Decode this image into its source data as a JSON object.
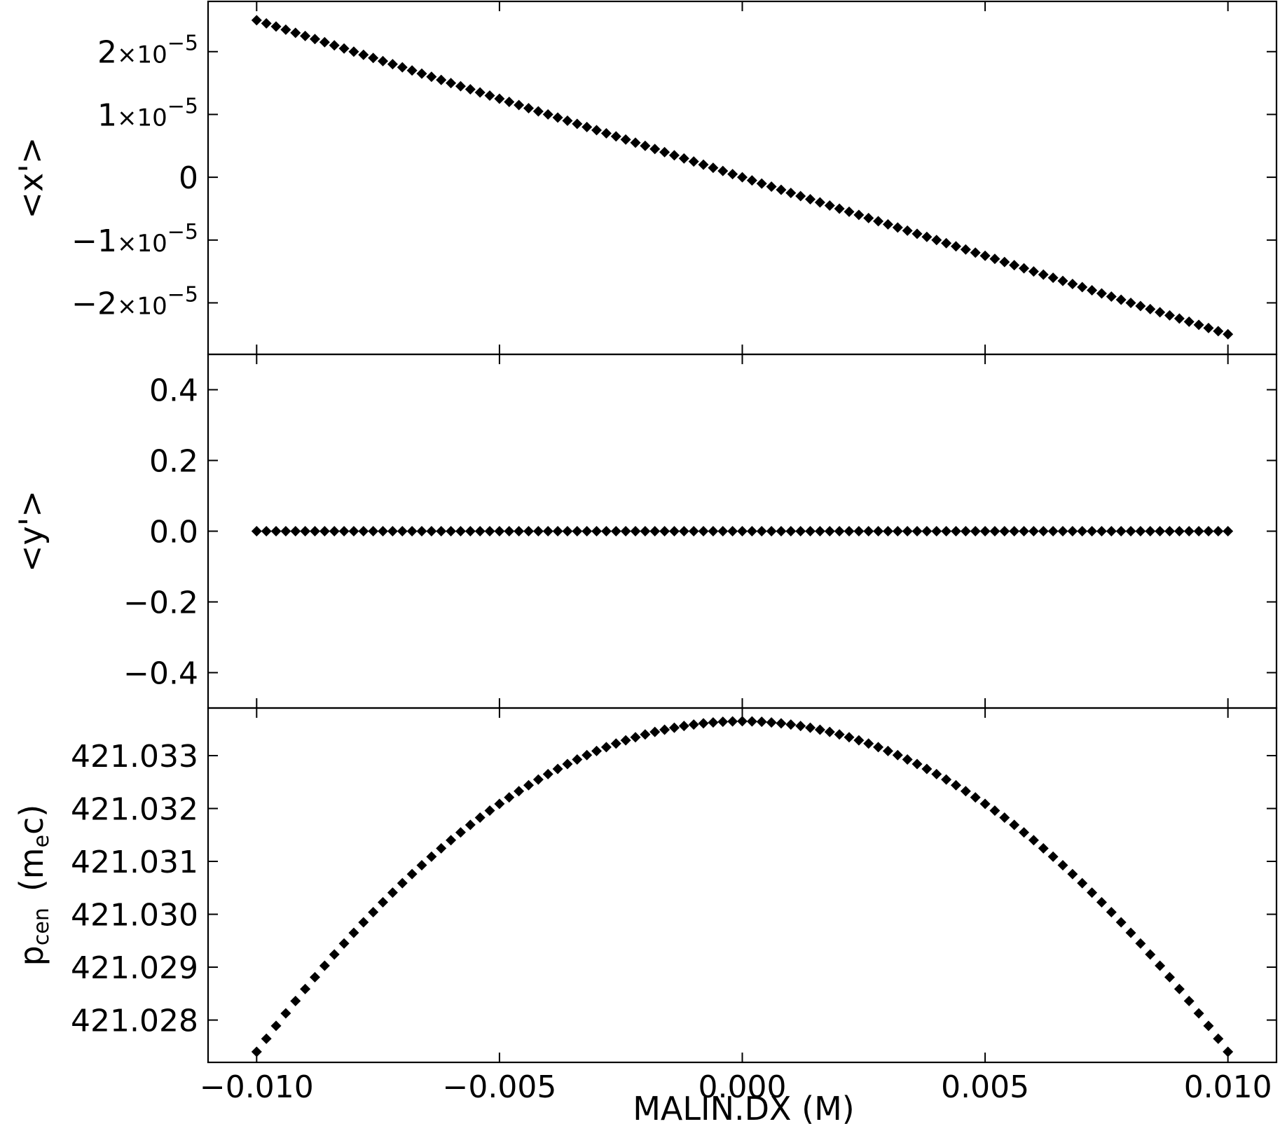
{
  "chart_data": [
    {
      "type": "scatter",
      "ylabel": "<x'>",
      "xlim": [
        -0.011,
        0.011
      ],
      "ylim": [
        -2.82e-05,
        2.8e-05
      ],
      "yticks": [
        {
          "value": 2e-05,
          "mantissa": "2",
          "base": "×10",
          "exp": "−5"
        },
        {
          "value": 1e-05,
          "mantissa": "1",
          "base": "×10",
          "exp": "−5"
        },
        {
          "value": 0,
          "mantissa": "0",
          "base": "",
          "exp": ""
        },
        {
          "value": -1e-05,
          "mantissa": "−1",
          "base": "×10",
          "exp": "−5"
        },
        {
          "value": -2e-05,
          "mantissa": "−2",
          "base": "×10",
          "exp": "−5"
        }
      ],
      "series": [
        {
          "model": "linear",
          "x_range": [
            -0.01,
            0.01
          ],
          "n_points": 101,
          "slope": -0.0025,
          "intercept": 0,
          "marker": "diamond",
          "color": "#000000"
        }
      ]
    },
    {
      "type": "scatter",
      "ylabel": "<y'>",
      "xlim": [
        -0.011,
        0.011
      ],
      "ylim": [
        -0.5,
        0.5
      ],
      "yticks": [
        {
          "value": 0.4,
          "label": "0.4"
        },
        {
          "value": 0.2,
          "label": "0.2"
        },
        {
          "value": 0.0,
          "label": "0.0"
        },
        {
          "value": -0.2,
          "label": "−0.2"
        },
        {
          "value": -0.4,
          "label": "−0.4"
        }
      ],
      "series": [
        {
          "model": "constant",
          "x_range": [
            -0.01,
            0.01
          ],
          "n_points": 101,
          "value": 0.0,
          "marker": "diamond",
          "color": "#000000"
        }
      ]
    },
    {
      "type": "scatter",
      "ylabel": "p",
      "ylabel_sub": "cen",
      "ylabel_unit_open": "(m",
      "ylabel_unit_sub": "e",
      "ylabel_unit_close": "c)",
      "xlabel": "MALIN.DX  (M)",
      "xlim": [
        -0.011,
        0.011
      ],
      "ylim": [
        421.0272,
        421.0339
      ],
      "yticks": [
        {
          "value": 421.033,
          "label": "421.033"
        },
        {
          "value": 421.032,
          "label": "421.032"
        },
        {
          "value": 421.031,
          "label": "421.031"
        },
        {
          "value": 421.03,
          "label": "421.030"
        },
        {
          "value": 421.029,
          "label": "421.029"
        },
        {
          "value": 421.028,
          "label": "421.028"
        }
      ],
      "xticks": [
        {
          "value": -0.01,
          "label": "−0.010"
        },
        {
          "value": -0.005,
          "label": "−0.005"
        },
        {
          "value": 0.0,
          "label": "0.000"
        },
        {
          "value": 0.005,
          "label": "0.005"
        },
        {
          "value": 0.01,
          "label": "0.010"
        }
      ],
      "series": [
        {
          "model": "quadratic",
          "x_range": [
            -0.01,
            0.01
          ],
          "n_points": 101,
          "vertex_x": 0.0,
          "vertex_y": 421.03365,
          "edge_y": 421.0274,
          "marker": "diamond",
          "color": "#000000"
        }
      ]
    }
  ]
}
